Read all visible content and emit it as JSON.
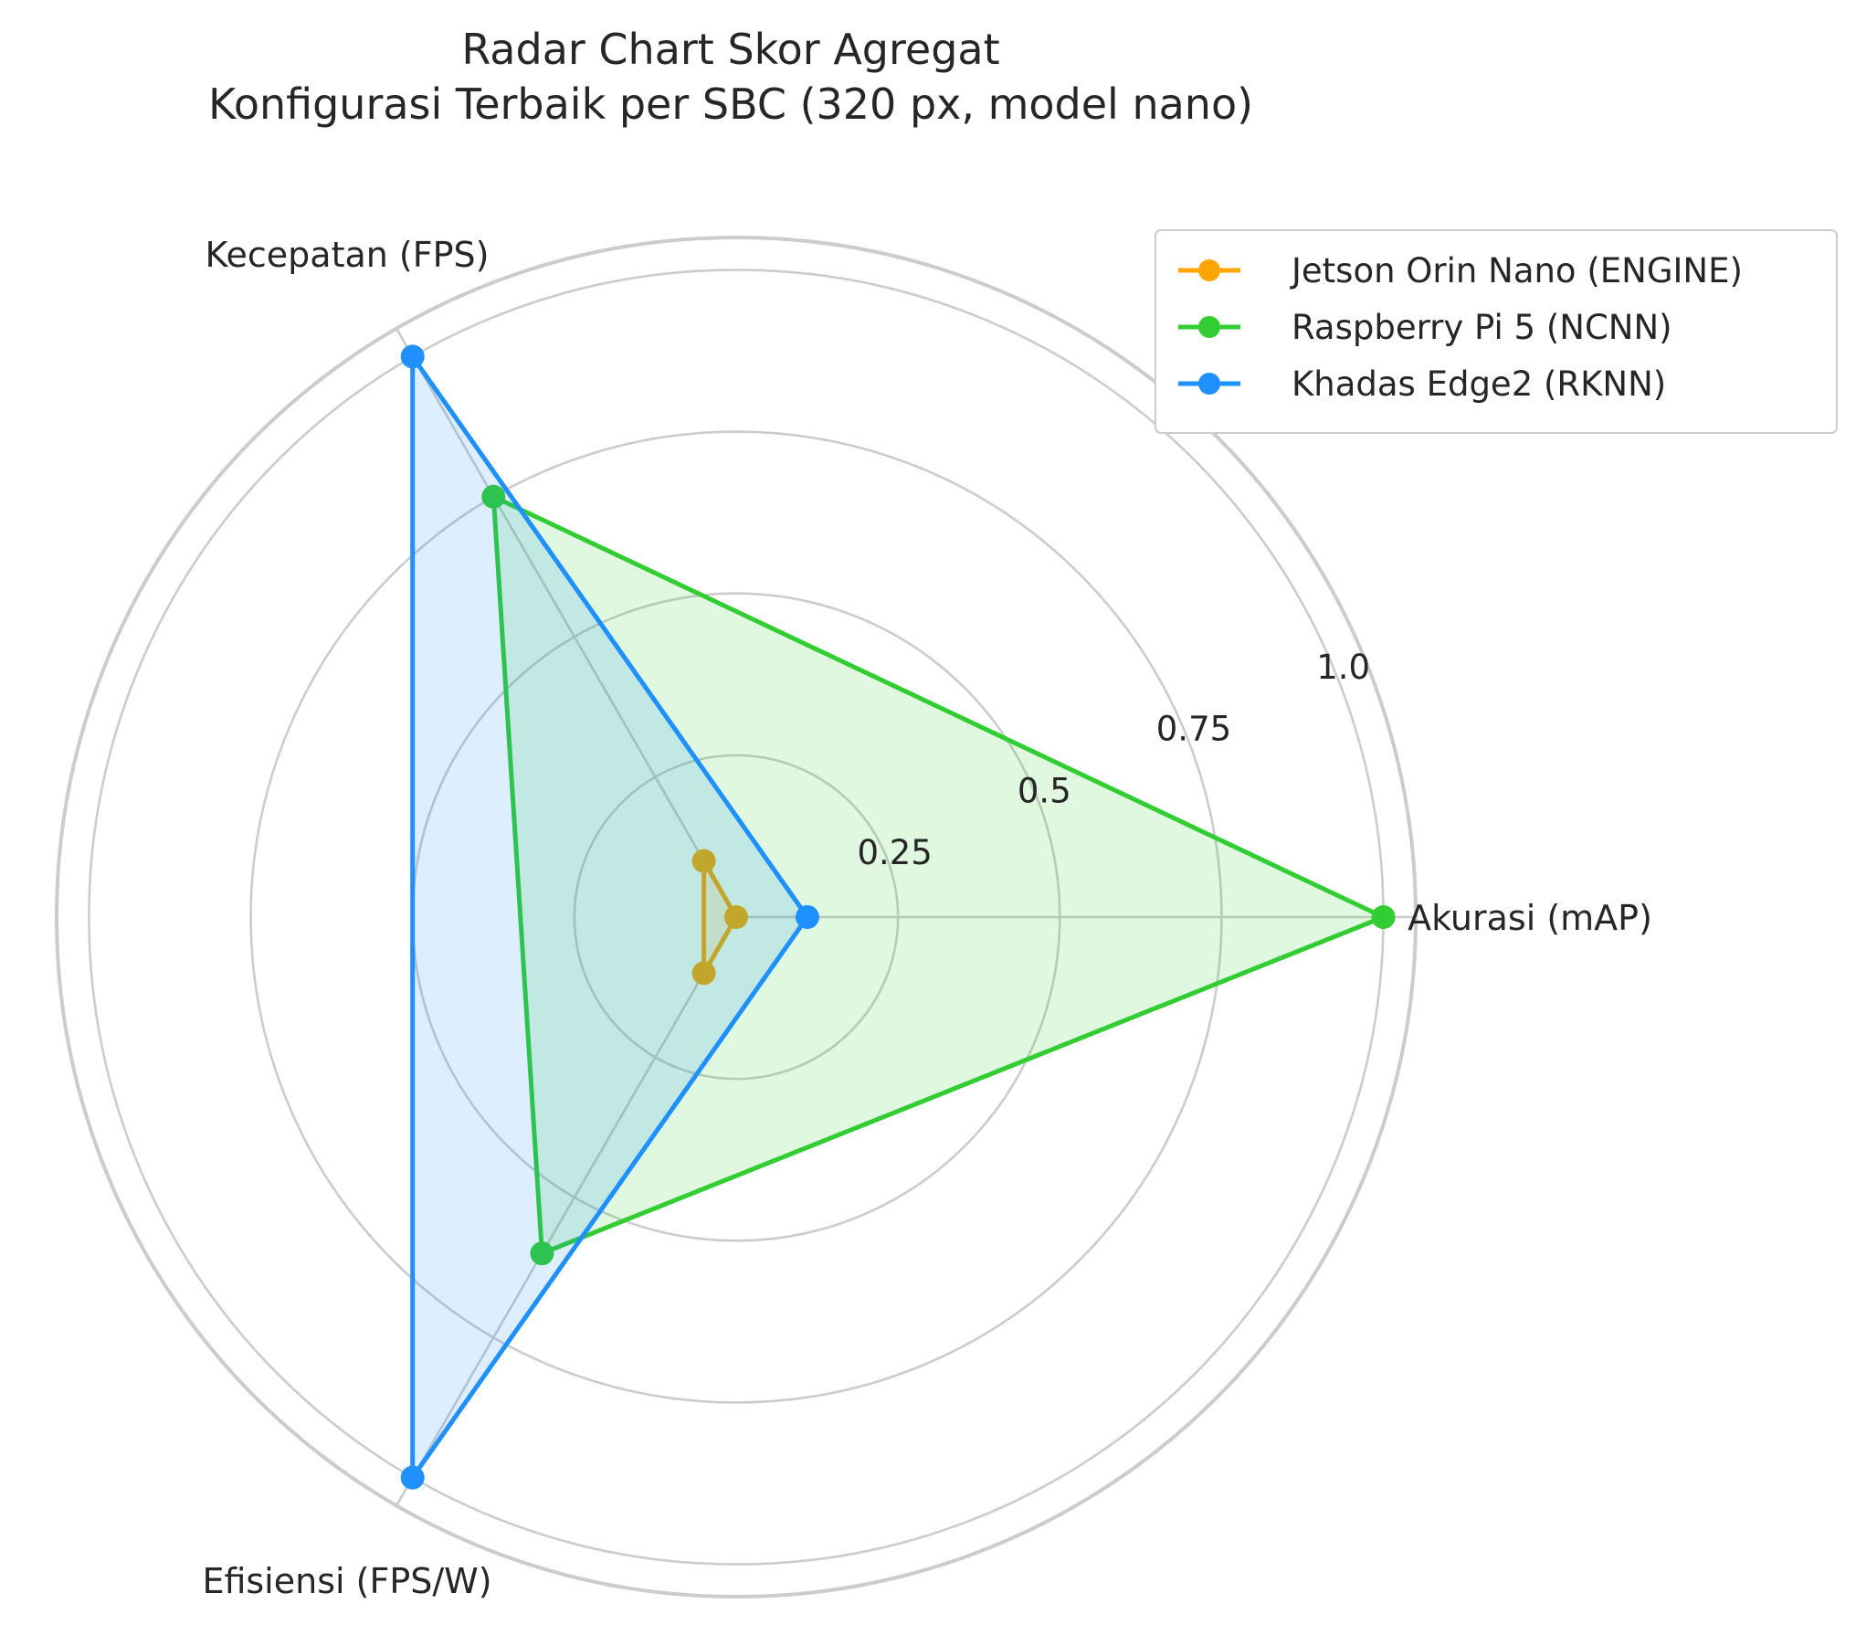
{
  "chart_data": {
    "type": "radar",
    "title": [
      "Radar Chart Skor Agregat",
      "Konfigurasi Terbaik per SBC (320 px, model nano)"
    ],
    "axes": [
      "Akurasi (mAP)",
      "Kecepatan (FPS)",
      "Efisiensi (FPS/W)"
    ],
    "radial_ticks": [
      "0.25",
      "0.5",
      "0.75",
      "1.0"
    ],
    "radial_tick_values": [
      0.25,
      0.5,
      0.75,
      1.0
    ],
    "rlim": [
      0,
      1.05
    ],
    "grid": true,
    "legend_position": "top-right",
    "series": [
      {
        "name": "Jetson Orin Nano (ENGINE)",
        "color": "#FFA500",
        "values": [
          0.0,
          0.1,
          0.1
        ]
      },
      {
        "name": "Raspberry Pi 5 (NCNN)",
        "color": "#32CD32",
        "values": [
          1.0,
          0.75,
          0.6
        ]
      },
      {
        "name": "Khadas Edge2 (RKNN)",
        "color": "#1E90FF",
        "values": [
          0.11,
          1.0,
          1.0
        ]
      }
    ]
  }
}
